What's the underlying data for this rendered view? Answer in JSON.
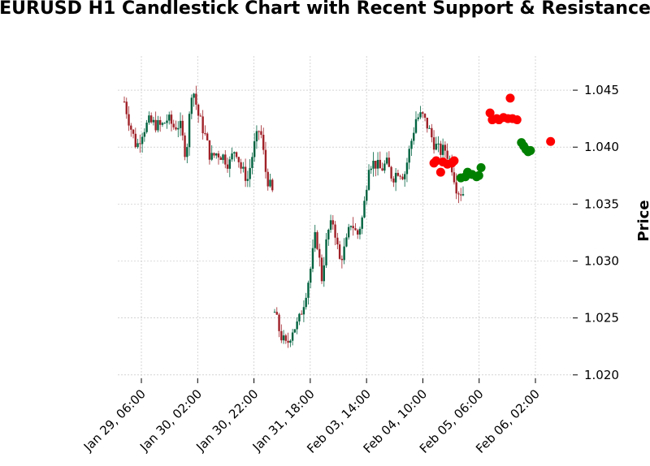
{
  "chart_data": {
    "type": "candlestick",
    "title": "EURUSD H1 Candlestick Chart with Recent Support & Resistance",
    "xlabel": "",
    "ylabel": "Price",
    "ylim": [
      1.0197,
      1.048
    ],
    "yticks": [
      "1.020",
      "1.025",
      "1.030",
      "1.035",
      "1.040",
      "1.045"
    ],
    "xticks": [
      "Jan 29, 06:00",
      "Jan 30, 02:00",
      "Jan 30, 22:00",
      "Jan 31, 18:00",
      "Feb 03, 14:00",
      "Feb 04, 10:00",
      "Feb 05, 06:00",
      "Feb 06, 02:00"
    ],
    "grid": true,
    "colors": {
      "up": "#006340",
      "down": "#a02128",
      "resistance": "#ff0000",
      "support": "#008000",
      "grid": "#bbbbbb"
    },
    "segments": [
      {
        "anchors": [
          1.044,
          1.0418,
          1.04,
          1.0415,
          1.0422,
          1.042,
          1.0418,
          1.0425,
          1.0418,
          1.042,
          1.0392,
          1.0455,
          1.0428,
          1.0412,
          1.039,
          1.0395,
          1.0392,
          1.0385,
          1.04,
          1.038,
          1.0372,
          1.04,
          1.0418,
          1.0375,
          1.036
        ],
        "start": 0,
        "count": 67
      },
      {
        "anchors": [
          1.0255,
          1.0235,
          1.0225,
          1.024,
          1.0245,
          1.0265,
          1.029,
          1.0325,
          1.0285,
          1.0325,
          1.0335,
          1.03,
          1.0312,
          1.0335,
          1.0322,
          1.034,
          1.0386,
          1.0386,
          1.038,
          1.0386,
          1.0373,
          1.038,
          1.0375,
          1.04,
          1.0425,
          1.0428,
          1.0418,
          1.0404,
          1.0396,
          1.0398,
          1.0385,
          1.0362,
          1.036
        ],
        "start": 67,
        "count": 85
      }
    ],
    "resistance_points": [
      {
        "x": 138,
        "y": 1.0386
      },
      {
        "x": 139,
        "y": 1.0388
      },
      {
        "x": 141,
        "y": 1.0378
      },
      {
        "x": 142,
        "y": 1.0387
      },
      {
        "x": 144,
        "y": 1.0385
      },
      {
        "x": 146,
        "y": 1.0386
      },
      {
        "x": 147,
        "y": 1.0388
      },
      {
        "x": 163,
        "y": 1.043
      },
      {
        "x": 164,
        "y": 1.0424
      },
      {
        "x": 166,
        "y": 1.0425
      },
      {
        "x": 167,
        "y": 1.0424
      },
      {
        "x": 169,
        "y": 1.0426
      },
      {
        "x": 171,
        "y": 1.0425
      },
      {
        "x": 172,
        "y": 1.0443
      },
      {
        "x": 173,
        "y": 1.0425
      },
      {
        "x": 175,
        "y": 1.0424
      },
      {
        "x": 190,
        "y": 1.0405
      }
    ],
    "support_points": [
      {
        "x": 150,
        "y": 1.0373
      },
      {
        "x": 152,
        "y": 1.0374
      },
      {
        "x": 153,
        "y": 1.0378
      },
      {
        "x": 155,
        "y": 1.0376
      },
      {
        "x": 157,
        "y": 1.0374
      },
      {
        "x": 158,
        "y": 1.0375
      },
      {
        "x": 159,
        "y": 1.0382
      },
      {
        "x": 177,
        "y": 1.0404
      },
      {
        "x": 178,
        "y": 1.0401
      },
      {
        "x": 179,
        "y": 1.0398
      },
      {
        "x": 180,
        "y": 1.0396
      },
      {
        "x": 181,
        "y": 1.0397
      }
    ]
  }
}
